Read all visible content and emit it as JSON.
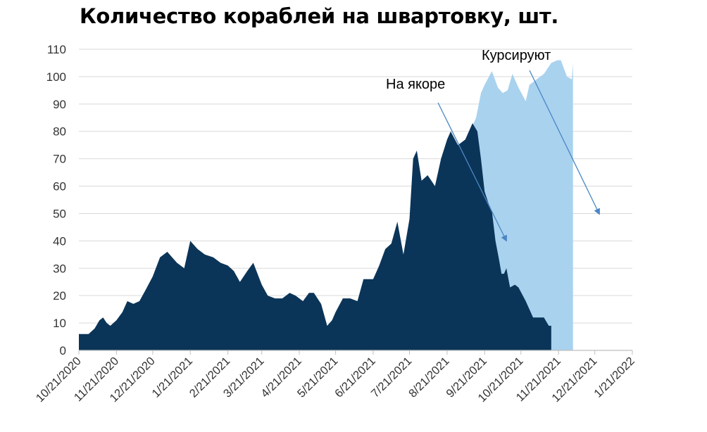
{
  "chart_data": {
    "type": "area",
    "title": "Количество кораблей на швартовку, шт.",
    "xlabel": "",
    "ylabel": "",
    "ylim": [
      0,
      110
    ],
    "y_ticks": [
      0,
      10,
      20,
      30,
      40,
      50,
      60,
      70,
      80,
      90,
      100,
      110
    ],
    "x_tick_labels": [
      "10/21/2020",
      "11/21/2020",
      "12/21/2020",
      "1/21/2021",
      "2/21/2021",
      "3/21/2021",
      "4/21/2021",
      "5/21/2021",
      "6/21/2021",
      "7/21/2021",
      "8/21/2021",
      "9/21/2021",
      "10/21/2021",
      "11/21/2021",
      "12/21/2021",
      "1/21/2022"
    ],
    "grid": true,
    "legend": "none",
    "annotations": [
      "На якоре",
      "Курсируют"
    ],
    "colors": {
      "at_anchor": "#0b3558",
      "cruising": "#a9d2ee",
      "grid": "#d9d9d9",
      "axis": "#bfbfbf"
    },
    "series": [
      {
        "name": "На якоре",
        "points": [
          [
            "10/21/2020",
            6
          ],
          [
            "10/25/2020",
            6
          ],
          [
            "10/29/2020",
            6
          ],
          [
            "11/3/2020",
            8
          ],
          [
            "11/7/2020",
            11
          ],
          [
            "11/10/2020",
            12
          ],
          [
            "11/13/2020",
            10
          ],
          [
            "11/16/2020",
            9
          ],
          [
            "11/21/2020",
            11
          ],
          [
            "11/26/2020",
            14
          ],
          [
            "11/30/2020",
            18
          ],
          [
            "12/5/2020",
            17
          ],
          [
            "12/10/2020",
            18
          ],
          [
            "12/15/2020",
            22
          ],
          [
            "12/21/2020",
            27
          ],
          [
            "12/27/2020",
            34
          ],
          [
            "1/2/2021",
            36
          ],
          [
            "1/6/2021",
            34
          ],
          [
            "1/10/2021",
            32
          ],
          [
            "1/16/2021",
            30
          ],
          [
            "1/21/2021",
            40
          ],
          [
            "1/27/2021",
            37
          ],
          [
            "2/2/2021",
            35
          ],
          [
            "2/9/2021",
            34
          ],
          [
            "2/15/2021",
            32
          ],
          [
            "2/21/2021",
            31
          ],
          [
            "2/26/2021",
            29
          ],
          [
            "3/3/2021",
            25
          ],
          [
            "3/9/2021",
            29
          ],
          [
            "3/14/2021",
            32
          ],
          [
            "3/21/2021",
            24
          ],
          [
            "3/26/2021",
            20
          ],
          [
            "4/1/2021",
            19
          ],
          [
            "4/7/2021",
            19
          ],
          [
            "4/13/2021",
            21
          ],
          [
            "4/18/2021",
            20
          ],
          [
            "4/24/2021",
            18
          ],
          [
            "4/29/2021",
            21
          ],
          [
            "5/3/2021",
            21
          ],
          [
            "5/9/2021",
            17
          ],
          [
            "5/14/2021",
            9
          ],
          [
            "5/18/2021",
            11
          ],
          [
            "5/21/2021",
            14
          ],
          [
            "5/27/2021",
            19
          ],
          [
            "6/2/2021",
            19
          ],
          [
            "6/8/2021",
            18
          ],
          [
            "6/13/2021",
            26
          ],
          [
            "6/18/2021",
            26
          ],
          [
            "6/21/2021",
            26
          ],
          [
            "6/26/2021",
            31
          ],
          [
            "7/1/2021",
            37
          ],
          [
            "7/6/2021",
            39
          ],
          [
            "7/11/2021",
            47
          ],
          [
            "7/16/2021",
            35
          ],
          [
            "7/21/2021",
            48
          ],
          [
            "7/24/2021",
            70
          ],
          [
            "7/27/2021",
            73
          ],
          [
            "7/31/2021",
            62
          ],
          [
            "8/5/2021",
            64
          ],
          [
            "8/11/2021",
            60
          ],
          [
            "8/16/2021",
            70
          ],
          [
            "8/21/2021",
            77
          ],
          [
            "8/24/2021",
            80
          ],
          [
            "8/30/2021",
            75
          ],
          [
            "9/5/2021",
            77
          ],
          [
            "9/11/2021",
            83
          ],
          [
            "9/15/2021",
            80
          ],
          [
            "9/18/2021",
            70
          ],
          [
            "9/21/2021",
            58
          ],
          [
            "9/24/2021",
            54
          ],
          [
            "9/27/2021",
            51
          ],
          [
            "9/30/2021",
            40
          ],
          [
            "10/3/2021",
            33
          ],
          [
            "10/5/2021",
            28
          ],
          [
            "10/7/2021",
            28
          ],
          [
            "10/9/2021",
            30
          ],
          [
            "10/12/2021",
            23
          ],
          [
            "10/16/2021",
            24
          ],
          [
            "10/19/2021",
            23
          ],
          [
            "10/25/2021",
            18
          ],
          [
            "10/31/2021",
            12
          ],
          [
            "11/5/2021",
            12
          ],
          [
            "11/9/2021",
            12
          ],
          [
            "11/13/2021",
            9
          ],
          [
            "11/15/2021",
            9
          ]
        ]
      },
      {
        "name": "Курсируют",
        "points": [
          [
            "9/11/2021",
            82
          ],
          [
            "9/14/2021",
            85
          ],
          [
            "9/18/2021",
            94
          ],
          [
            "9/21/2021",
            97
          ],
          [
            "9/27/2021",
            102
          ],
          [
            "10/2/2021",
            96
          ],
          [
            "10/6/2021",
            94
          ],
          [
            "10/10/2021",
            95
          ],
          [
            "10/14/2021",
            101
          ],
          [
            "10/19/2021",
            96
          ],
          [
            "10/25/2021",
            91
          ],
          [
            "10/28/2021",
            97
          ],
          [
            "11/3/2021",
            99
          ],
          [
            "11/9/2021",
            101
          ],
          [
            "11/15/2021",
            105
          ],
          [
            "11/20/2021",
            106
          ],
          [
            "11/23/2021",
            106
          ],
          [
            "11/28/2021",
            100
          ],
          [
            "12/2/2021",
            99
          ],
          [
            "12/3/2021",
            105
          ]
        ]
      }
    ]
  }
}
